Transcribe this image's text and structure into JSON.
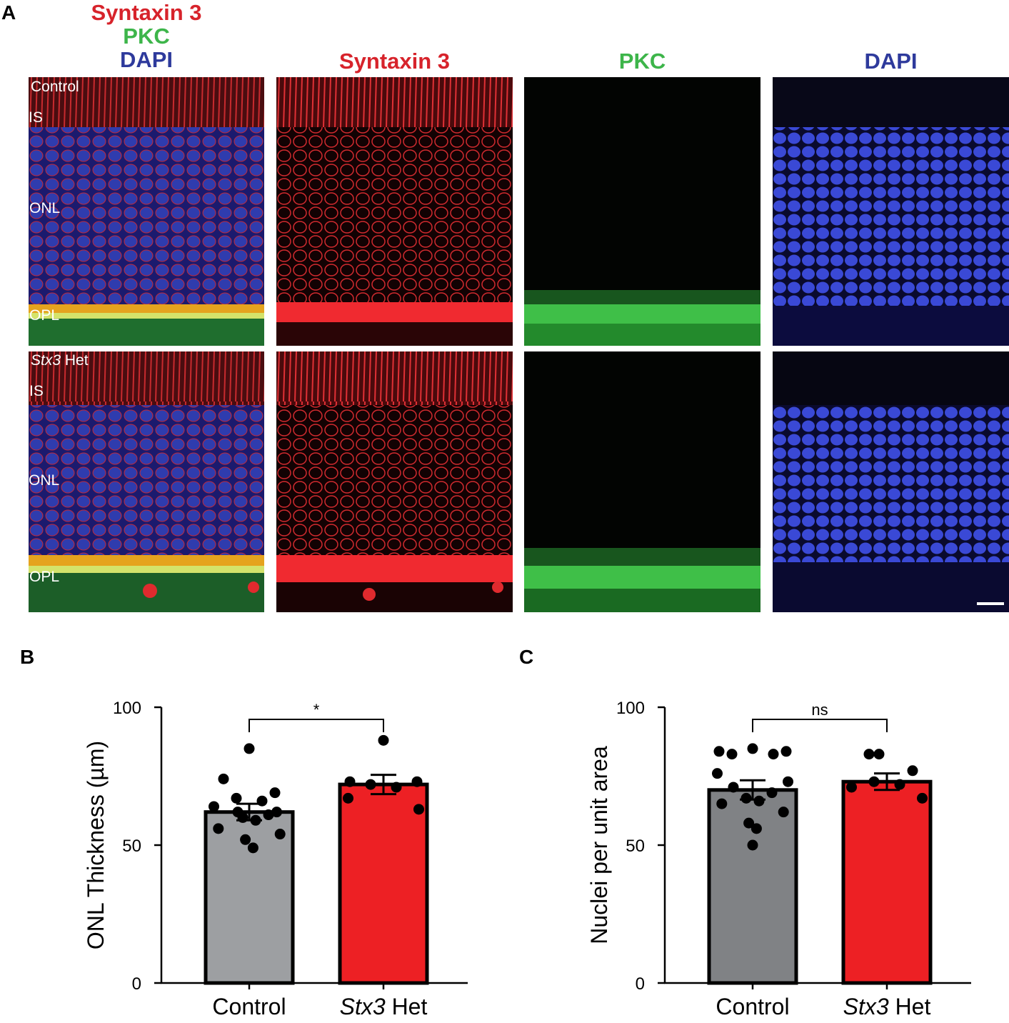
{
  "panels": {
    "a": "A",
    "b": "B",
    "c": "C"
  },
  "micrographs": {
    "merge_header": [
      "Syntaxin 3",
      "PKC",
      "DAPI"
    ],
    "column_headers": [
      "Syntaxin 3",
      "PKC",
      "DAPI"
    ],
    "channel_colors": {
      "syntaxin3": "#d7232b",
      "pkc": "#3db54a",
      "dapi": "#2e3a9c"
    },
    "rows": [
      {
        "condition_gene": "",
        "condition_suffix": "Control",
        "layers": [
          "IS",
          "ONL",
          "OPL"
        ]
      },
      {
        "condition_gene": "Stx3",
        "condition_suffix": " Het",
        "layers": [
          "IS",
          "ONL",
          "OPL"
        ]
      }
    ]
  },
  "chart_data": [
    {
      "type": "bar",
      "panel": "B",
      "categories": [
        {
          "gene": "",
          "suffix": "Control"
        },
        {
          "gene": "Stx3",
          "suffix": " Het"
        }
      ],
      "values": [
        62,
        72
      ],
      "sem": [
        3,
        3.5
      ],
      "colors": [
        "#9d9fa2",
        "#ed2024"
      ],
      "points": [
        [
          85,
          74,
          69,
          67,
          66,
          64,
          62,
          62,
          61,
          60,
          59,
          56,
          54,
          52,
          49
        ],
        [
          88,
          73,
          73,
          72,
          71,
          67,
          63
        ]
      ],
      "ylabel": "ONL Thickness (µm)",
      "ylim": [
        0,
        100
      ],
      "yticks": [
        0,
        50,
        100
      ],
      "significance": "*",
      "grid": false
    },
    {
      "type": "bar",
      "panel": "C",
      "categories": [
        {
          "gene": "",
          "suffix": "Control"
        },
        {
          "gene": "Stx3",
          "suffix": " Het"
        }
      ],
      "values": [
        70,
        73
      ],
      "sem": [
        3.5,
        3
      ],
      "colors": [
        "#808285",
        "#ed2024"
      ],
      "points": [
        [
          85,
          84,
          84,
          83,
          83,
          76,
          73,
          71,
          69,
          67,
          66,
          65,
          62,
          58,
          56,
          50
        ],
        [
          83,
          83,
          77,
          73,
          72,
          71,
          67
        ]
      ],
      "ylabel": "Nuclei per unit area",
      "ylim": [
        0,
        100
      ],
      "yticks": [
        0,
        50,
        100
      ],
      "significance": "ns",
      "grid": false
    }
  ]
}
